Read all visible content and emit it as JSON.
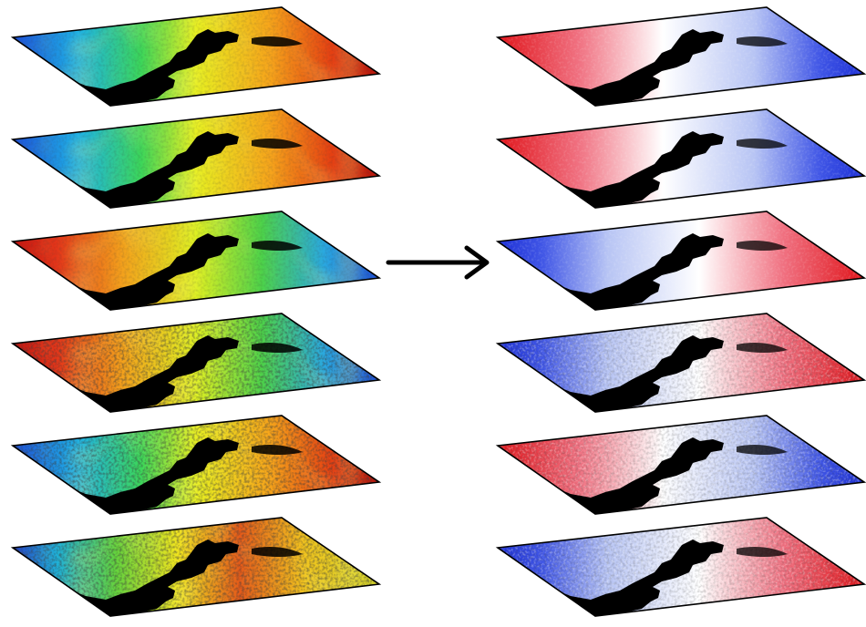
{
  "diagram": {
    "arrow": {
      "direction": "right",
      "color": "#000000"
    },
    "left_column": {
      "colormap": "jet",
      "layers": [
        {
          "index": 1,
          "hot_side": "right",
          "texture": "smooth"
        },
        {
          "index": 2,
          "hot_side": "right",
          "texture": "smooth"
        },
        {
          "index": 3,
          "hot_side": "left",
          "texture": "smooth"
        },
        {
          "index": 4,
          "hot_side": "left",
          "texture": "noisy"
        },
        {
          "index": 5,
          "hot_side": "right",
          "texture": "noisy"
        },
        {
          "index": 6,
          "hot_side": "center",
          "texture": "noisy"
        }
      ]
    },
    "right_column": {
      "colormap": "diverging-red-white-blue",
      "layers": [
        {
          "index": 1,
          "red_side": "left",
          "texture": "smooth"
        },
        {
          "index": 2,
          "red_side": "left",
          "texture": "smooth"
        },
        {
          "index": 3,
          "red_side": "right",
          "texture": "smooth"
        },
        {
          "index": 4,
          "red_side": "right",
          "texture": "noisy"
        },
        {
          "index": 5,
          "red_side": "left",
          "texture": "noisy"
        },
        {
          "index": 6,
          "red_side": "right",
          "texture": "noisy"
        }
      ]
    },
    "mask_color": "#000000",
    "outline_color": "#000000"
  }
}
